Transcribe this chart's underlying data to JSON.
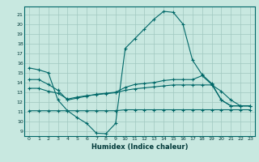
{
  "background_color": "#c8e8e0",
  "grid_color": "#a0c8c0",
  "line_color": "#006868",
  "xlabel": "Humidex (Indice chaleur)",
  "x_ticks": [
    0,
    1,
    2,
    3,
    4,
    5,
    6,
    7,
    8,
    9,
    10,
    11,
    12,
    13,
    14,
    15,
    16,
    17,
    18,
    19,
    20,
    21,
    22,
    23
  ],
  "ylim": [
    8.5,
    21.8
  ],
  "xlim": [
    -0.5,
    23.5
  ],
  "yticks": [
    9,
    10,
    11,
    12,
    13,
    14,
    15,
    16,
    17,
    18,
    19,
    20,
    21
  ],
  "curve1_x": [
    0,
    1,
    2,
    3,
    4,
    5,
    6,
    7,
    8,
    9,
    10,
    11,
    12,
    13,
    14,
    15,
    16,
    17,
    18,
    19,
    20,
    21,
    22,
    23
  ],
  "curve1_y": [
    15.5,
    15.3,
    15.0,
    12.2,
    11.1,
    10.4,
    9.8,
    8.8,
    8.75,
    9.8,
    17.5,
    18.5,
    19.5,
    20.5,
    21.3,
    21.2,
    20.0,
    16.3,
    14.8,
    13.9,
    12.2,
    11.6,
    11.6,
    11.6
  ],
  "curve2_x": [
    0,
    1,
    2,
    3,
    4,
    5,
    6,
    7,
    8,
    9,
    10,
    11,
    12,
    13,
    14,
    15,
    16,
    17,
    18,
    19,
    20,
    21,
    22,
    23
  ],
  "curve2_y": [
    14.3,
    14.3,
    13.8,
    13.2,
    12.2,
    12.4,
    12.6,
    12.8,
    12.9,
    13.0,
    13.5,
    13.8,
    13.9,
    14.0,
    14.2,
    14.3,
    14.3,
    14.3,
    14.7,
    13.8,
    12.2,
    11.6,
    11.6,
    11.6
  ],
  "curve3_x": [
    0,
    1,
    2,
    3,
    4,
    5,
    6,
    7,
    8,
    9,
    10,
    11,
    12,
    13,
    14,
    15,
    16,
    17,
    18,
    19,
    20,
    21,
    22,
    23
  ],
  "curve3_y": [
    13.4,
    13.4,
    13.1,
    12.9,
    12.3,
    12.5,
    12.65,
    12.75,
    12.85,
    12.95,
    13.2,
    13.35,
    13.45,
    13.55,
    13.65,
    13.75,
    13.75,
    13.75,
    13.75,
    13.75,
    13.1,
    12.2,
    11.6,
    11.6
  ],
  "curve4_x": [
    0,
    1,
    2,
    3,
    4,
    5,
    6,
    7,
    8,
    9,
    10,
    11,
    12,
    13,
    14,
    15,
    16,
    17,
    18,
    19,
    20,
    21,
    22,
    23
  ],
  "curve4_y": [
    11.1,
    11.1,
    11.1,
    11.1,
    11.1,
    11.1,
    11.1,
    11.1,
    11.1,
    11.1,
    11.2,
    11.2,
    11.2,
    11.2,
    11.2,
    11.2,
    11.2,
    11.2,
    11.2,
    11.2,
    11.2,
    11.2,
    11.2,
    11.2
  ]
}
